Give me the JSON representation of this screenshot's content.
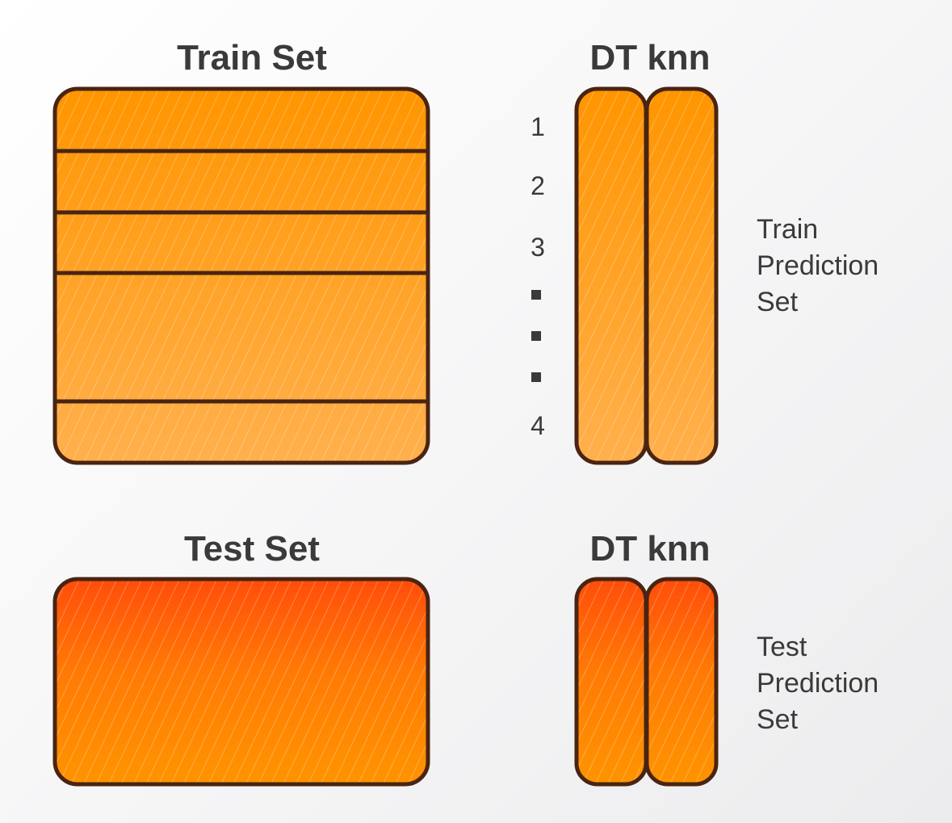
{
  "colors": {
    "outline": "#4a2412",
    "train_fill_top": "#ff9500",
    "train_fill_bottom": "#ffb04d",
    "test_fill_top": "#ff4d0a",
    "test_fill_bottom": "#ff9400",
    "text": "#3a3a3a"
  },
  "train": {
    "title": "Train Set",
    "model_title": "DT knn",
    "fold_count": 5,
    "row_labels": [
      "1",
      "2",
      "3",
      "4"
    ],
    "ellipsis": "▪▪▪",
    "prediction_label": [
      "Train",
      "Prediction",
      "Set"
    ]
  },
  "test": {
    "title": "Test Set",
    "model_title": "DT knn",
    "prediction_label": [
      "Test",
      "Prediction",
      "Set"
    ]
  }
}
